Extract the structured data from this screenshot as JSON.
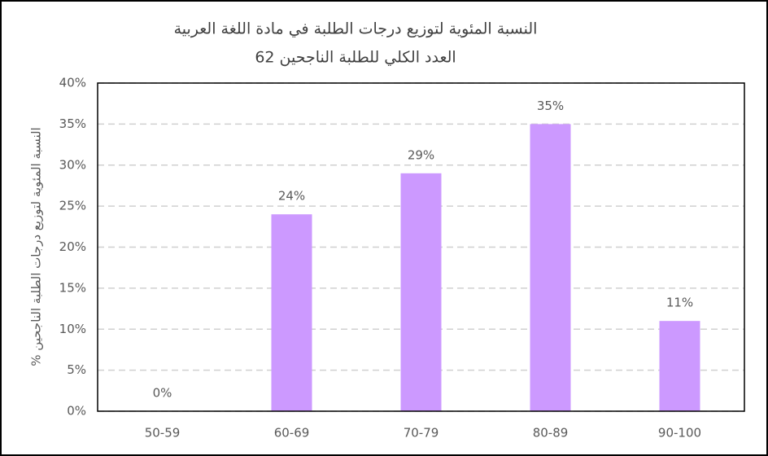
{
  "chart_data": {
    "type": "bar",
    "title": [
      "النسبة المئوية لتوزيع درجات الطلبة في مادة اللغة العربية",
      "العدد الكلي للطلبة الناجحين 62"
    ],
    "y_label": "النسبة المئوية لتوزيع درجات الطلبة الناجحين %",
    "categories": [
      "50-59",
      "60-69",
      "70-79",
      "80-89",
      "90-100"
    ],
    "values": [
      0,
      24,
      29,
      35,
      11
    ],
    "value_labels": [
      "0%",
      "24%",
      "29%",
      "35%",
      "11%"
    ],
    "color": "#cc99ff",
    "ylim": [
      0,
      40
    ],
    "yticks": [
      {
        "value": 0,
        "label": "0%"
      },
      {
        "value": 5,
        "label": "5%"
      },
      {
        "value": 10,
        "label": "10%"
      },
      {
        "value": 15,
        "label": "15%"
      },
      {
        "value": 20,
        "label": "20%"
      },
      {
        "value": 25,
        "label": "25%"
      },
      {
        "value": 30,
        "label": "30%"
      },
      {
        "value": 35,
        "label": "35%"
      },
      {
        "value": 40,
        "label": "40%"
      }
    ],
    "grid": true
  }
}
